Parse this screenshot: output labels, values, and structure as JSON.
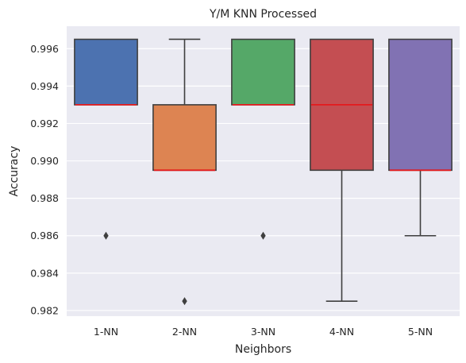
{
  "chart_data": {
    "type": "box",
    "title": "Y/M KNN Processed",
    "xlabel": "Neighbors",
    "ylabel": "Accuracy",
    "categories": [
      "1-NN",
      "2-NN",
      "3-NN",
      "4-NN",
      "5-NN"
    ],
    "ylim": [
      0.9817,
      0.9972
    ],
    "yticks": [
      0.982,
      0.984,
      0.986,
      0.988,
      0.99,
      0.992,
      0.994,
      0.996
    ],
    "ytick_labels": [
      "0.982",
      "0.984",
      "0.986",
      "0.988",
      "0.990",
      "0.992",
      "0.994",
      "0.996"
    ],
    "grid": true,
    "boxes": [
      {
        "name": "1-NN",
        "whisker_low": 0.993,
        "q1": 0.993,
        "median": 0.993,
        "q3": 0.9965,
        "whisker_high": 0.9965,
        "outliers": [
          0.986
        ],
        "color": "#4c72b0"
      },
      {
        "name": "2-NN",
        "whisker_low": 0.9895,
        "q1": 0.9895,
        "median": 0.9895,
        "q3": 0.993,
        "whisker_high": 0.9965,
        "outliers": [
          0.9825
        ],
        "color": "#dd8452"
      },
      {
        "name": "3-NN",
        "whisker_low": 0.993,
        "q1": 0.993,
        "median": 0.993,
        "q3": 0.9965,
        "whisker_high": 0.9965,
        "outliers": [
          0.986
        ],
        "color": "#55a868"
      },
      {
        "name": "4-NN",
        "whisker_low": 0.9825,
        "q1": 0.9895,
        "median": 0.993,
        "q3": 0.9965,
        "whisker_high": 0.9965,
        "outliers": [],
        "color": "#c44e52"
      },
      {
        "name": "5-NN",
        "whisker_low": 0.986,
        "q1": 0.9895,
        "median": 0.9895,
        "q3": 0.9965,
        "whisker_high": 0.9965,
        "outliers": [],
        "color": "#8172b3"
      }
    ],
    "colors": {
      "plot_background": "#eaeaf2",
      "grid": "#ffffff",
      "box_edge": "#3f3f3f",
      "median": "#e41a1c"
    }
  }
}
